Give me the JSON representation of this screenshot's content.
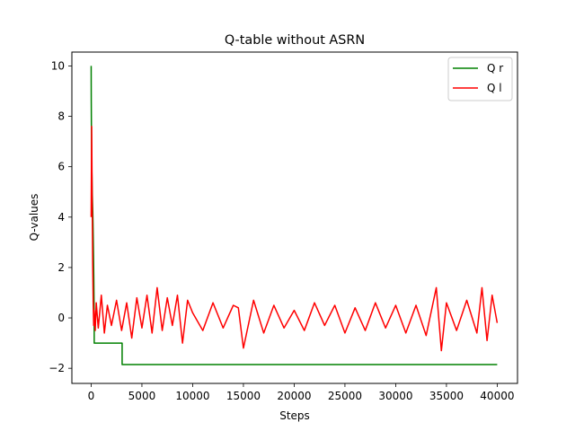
{
  "chart_data": {
    "type": "line",
    "title": "Q-table without ASRN",
    "xlabel": "Steps",
    "ylabel": "Q-values",
    "xlim": [
      -1900,
      42000
    ],
    "ylim": [
      -2.6,
      10.55
    ],
    "x_ticks": [
      0,
      5000,
      10000,
      15000,
      20000,
      25000,
      30000,
      35000,
      40000
    ],
    "x_tick_labels": [
      "0",
      "5000",
      "10000",
      "15000",
      "20000",
      "25000",
      "30000",
      "35000",
      "40000"
    ],
    "y_ticks": [
      -2,
      0,
      2,
      4,
      6,
      8,
      10
    ],
    "y_tick_labels": [
      "−2",
      "0",
      "2",
      "4",
      "6",
      "8",
      "10"
    ],
    "grid": false,
    "legend_position": "top-right",
    "series": [
      {
        "name": "Q r",
        "color": "#008000",
        "x": [
          0,
          5,
          10,
          20,
          30,
          40,
          60,
          80,
          100,
          120,
          140,
          160,
          180,
          200,
          230,
          260,
          300,
          300,
          3050,
          3050,
          40000
        ],
        "y": [
          10.0,
          9.2,
          8.6,
          7.9,
          7.3,
          6.7,
          6.0,
          5.6,
          5.1,
          4.8,
          4.5,
          4.2,
          3.8,
          3.3,
          2.5,
          1.6,
          0.0,
          -1.0,
          -1.0,
          -1.85,
          -1.85
        ]
      },
      {
        "name": "Q l",
        "color": "#ff0000",
        "x": [
          0,
          50,
          100,
          150,
          200,
          250,
          300,
          400,
          500,
          700,
          1000,
          1300,
          1600,
          2000,
          2500,
          3000,
          3500,
          4000,
          4500,
          5000,
          5500,
          6000,
          6500,
          7000,
          7500,
          8000,
          8500,
          9000,
          9500,
          10000,
          11000,
          12000,
          13000,
          14000,
          14500,
          15000,
          16000,
          17000,
          18000,
          19000,
          20000,
          21000,
          22000,
          23000,
          24000,
          25000,
          26000,
          27000,
          28000,
          29000,
          30000,
          31000,
          32000,
          33000,
          34000,
          34500,
          35000,
          36000,
          37000,
          38000,
          38500,
          39000,
          39500,
          40000
        ],
        "y": [
          4.0,
          7.6,
          4.7,
          2.2,
          0.6,
          -0.3,
          0.3,
          -0.5,
          0.6,
          -0.4,
          0.9,
          -0.6,
          0.5,
          -0.3,
          0.7,
          -0.5,
          0.6,
          -0.8,
          0.8,
          -0.4,
          0.9,
          -0.6,
          1.2,
          -0.5,
          0.8,
          -0.3,
          0.9,
          -1.0,
          0.7,
          0.2,
          -0.5,
          0.6,
          -0.4,
          0.5,
          0.4,
          -1.2,
          0.7,
          -0.6,
          0.5,
          -0.4,
          0.3,
          -0.5,
          0.6,
          -0.3,
          0.5,
          -0.6,
          0.4,
          -0.5,
          0.6,
          -0.4,
          0.5,
          -0.6,
          0.5,
          -0.7,
          1.2,
          -1.3,
          0.6,
          -0.5,
          0.7,
          -0.6,
          1.2,
          -0.9,
          0.9,
          -0.2
        ]
      }
    ]
  }
}
